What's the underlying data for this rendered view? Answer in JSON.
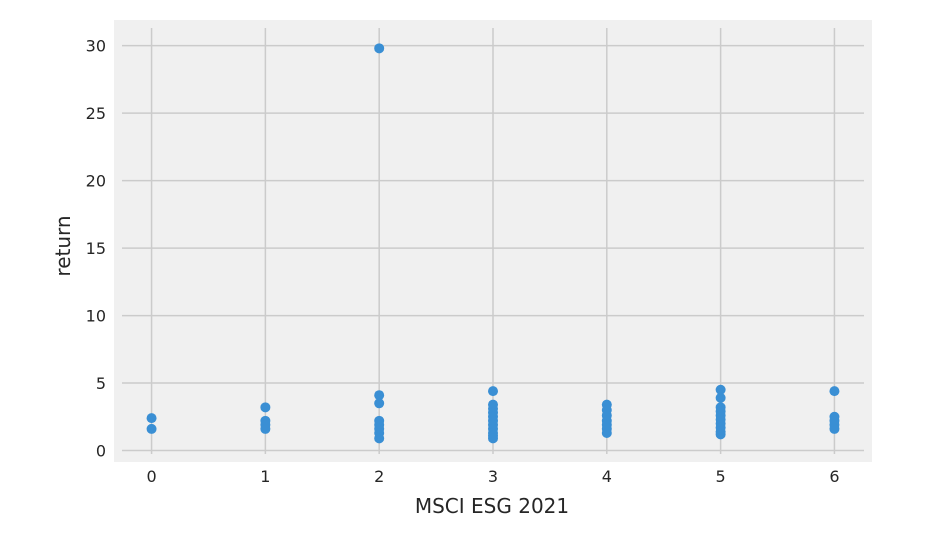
{
  "chart_data": {
    "type": "scatter",
    "xlabel": "MSCI ESG 2021",
    "ylabel": "return",
    "xlim": [
      -0.33,
      6.33
    ],
    "ylim": [
      -0.85,
      31.9
    ],
    "xticks": [
      0,
      1,
      2,
      3,
      4,
      5,
      6
    ],
    "yticks": [
      0,
      5,
      10,
      15,
      20,
      25,
      30
    ],
    "grid": true,
    "colors": {
      "background": "#f0f0f0",
      "grid": "#cbcbcb",
      "marker": "#3a8fd4"
    },
    "points": [
      [
        0,
        2.4
      ],
      [
        0,
        1.6
      ],
      [
        1,
        3.2
      ],
      [
        1,
        2.2
      ],
      [
        1,
        1.9
      ],
      [
        1,
        1.6
      ],
      [
        2,
        29.8
      ],
      [
        2,
        4.1
      ],
      [
        2,
        3.5
      ],
      [
        2,
        2.2
      ],
      [
        2,
        1.9
      ],
      [
        2,
        1.6
      ],
      [
        2,
        1.3
      ],
      [
        2,
        0.9
      ],
      [
        3,
        4.4
      ],
      [
        3,
        3.4
      ],
      [
        3,
        3.1
      ],
      [
        3,
        2.8
      ],
      [
        3,
        2.5
      ],
      [
        3,
        2.2
      ],
      [
        3,
        1.9
      ],
      [
        3,
        1.6
      ],
      [
        3,
        1.3
      ],
      [
        3,
        1.1
      ],
      [
        3,
        0.9
      ],
      [
        4,
        3.4
      ],
      [
        4,
        3.0
      ],
      [
        4,
        2.6
      ],
      [
        4,
        2.2
      ],
      [
        4,
        1.9
      ],
      [
        4,
        1.6
      ],
      [
        4,
        1.3
      ],
      [
        5,
        4.5
      ],
      [
        5,
        3.9
      ],
      [
        5,
        3.2
      ],
      [
        5,
        2.9
      ],
      [
        5,
        2.6
      ],
      [
        5,
        2.3
      ],
      [
        5,
        2.0
      ],
      [
        5,
        1.7
      ],
      [
        5,
        1.4
      ],
      [
        5,
        1.2
      ],
      [
        6,
        4.4
      ],
      [
        6,
        2.5
      ],
      [
        6,
        2.2
      ],
      [
        6,
        1.9
      ],
      [
        6,
        1.6
      ]
    ]
  }
}
